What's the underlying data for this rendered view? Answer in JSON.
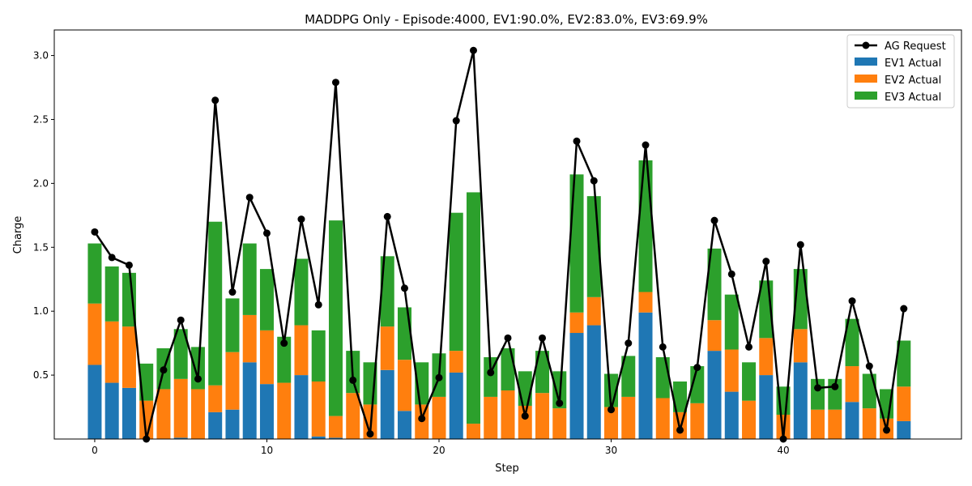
{
  "chart_data": {
    "type": "bar",
    "title": "MADDPG Only - Episode:4000, EV1:90.0%, EV2:83.0%, EV3:69.9%",
    "xlabel": "Step",
    "ylabel": "Charge",
    "xlim": [
      -2.35,
      50.35
    ],
    "ylim": [
      0,
      3.2
    ],
    "xticks": [
      0,
      10,
      20,
      30,
      40
    ],
    "yticks": [
      0.5,
      1.0,
      1.5,
      2.0,
      2.5,
      3.0
    ],
    "ytick_labels": [
      "0.5",
      "1.0",
      "1.5",
      "2.0",
      "2.5",
      "3.0"
    ],
    "legend_position": "top-right",
    "colors": {
      "ev1": "#1f77b4",
      "ev2": "#ff7f0e",
      "ev3": "#2ca02c",
      "request": "#000000"
    },
    "x": [
      0,
      1,
      2,
      3,
      4,
      5,
      6,
      7,
      8,
      9,
      10,
      11,
      12,
      13,
      14,
      15,
      16,
      17,
      18,
      19,
      20,
      21,
      22,
      23,
      24,
      25,
      26,
      27,
      28,
      29,
      30,
      31,
      32,
      33,
      34,
      35,
      36,
      37,
      38,
      39,
      40,
      41,
      42,
      43,
      44,
      45,
      46,
      47
    ],
    "series": [
      {
        "name": "EV1 Actual",
        "key": "ev1",
        "values": [
          0.58,
          0.44,
          0.4,
          0.0,
          0.0,
          0.01,
          0.0,
          0.21,
          0.23,
          0.6,
          0.43,
          0.0,
          0.5,
          0.02,
          0.01,
          0.0,
          0.0,
          0.54,
          0.22,
          0.0,
          0.0,
          0.52,
          0.0,
          0.0,
          0.0,
          0.0,
          0.0,
          0.0,
          0.83,
          0.89,
          0.0,
          0.0,
          0.99,
          0.0,
          0.0,
          0.0,
          0.69,
          0.37,
          0.0,
          0.5,
          0.0,
          0.6,
          0.0,
          0.0,
          0.29,
          0.0,
          0.0,
          0.14
        ]
      },
      {
        "name": "EV2 Actual",
        "key": "ev2",
        "values": [
          0.48,
          0.48,
          0.48,
          0.3,
          0.39,
          0.46,
          0.39,
          0.21,
          0.45,
          0.37,
          0.42,
          0.44,
          0.39,
          0.43,
          0.17,
          0.36,
          0.27,
          0.34,
          0.4,
          0.27,
          0.33,
          0.17,
          0.12,
          0.33,
          0.38,
          0.26,
          0.36,
          0.24,
          0.16,
          0.22,
          0.25,
          0.33,
          0.16,
          0.32,
          0.21,
          0.28,
          0.24,
          0.33,
          0.3,
          0.29,
          0.19,
          0.26,
          0.23,
          0.23,
          0.28,
          0.24,
          0.16,
          0.27
        ]
      },
      {
        "name": "EV3 Actual",
        "key": "ev3",
        "values": [
          0.47,
          0.43,
          0.42,
          0.29,
          0.32,
          0.39,
          0.33,
          1.28,
          0.42,
          0.56,
          0.48,
          0.36,
          0.52,
          0.4,
          1.53,
          0.33,
          0.33,
          0.55,
          0.41,
          0.33,
          0.34,
          1.08,
          1.81,
          0.31,
          0.33,
          0.27,
          0.33,
          0.29,
          1.08,
          0.79,
          0.26,
          0.32,
          1.03,
          0.32,
          0.24,
          0.29,
          0.56,
          0.43,
          0.3,
          0.45,
          0.22,
          0.47,
          0.24,
          0.24,
          0.37,
          0.27,
          0.23,
          0.36
        ]
      },
      {
        "name": "AG Request",
        "key": "request",
        "values": [
          1.62,
          1.42,
          1.36,
          0.0,
          0.54,
          0.93,
          0.47,
          2.65,
          1.15,
          1.89,
          1.61,
          0.75,
          1.72,
          1.05,
          2.79,
          0.46,
          0.04,
          1.74,
          1.18,
          0.16,
          0.48,
          2.49,
          3.04,
          0.52,
          0.79,
          0.18,
          0.79,
          0.28,
          2.33,
          2.02,
          0.23,
          0.75,
          2.3,
          0.72,
          0.07,
          0.56,
          1.71,
          1.29,
          0.72,
          1.39,
          0.0,
          1.52,
          0.4,
          0.41,
          1.08,
          0.57,
          0.07,
          1.02
        ]
      }
    ]
  }
}
